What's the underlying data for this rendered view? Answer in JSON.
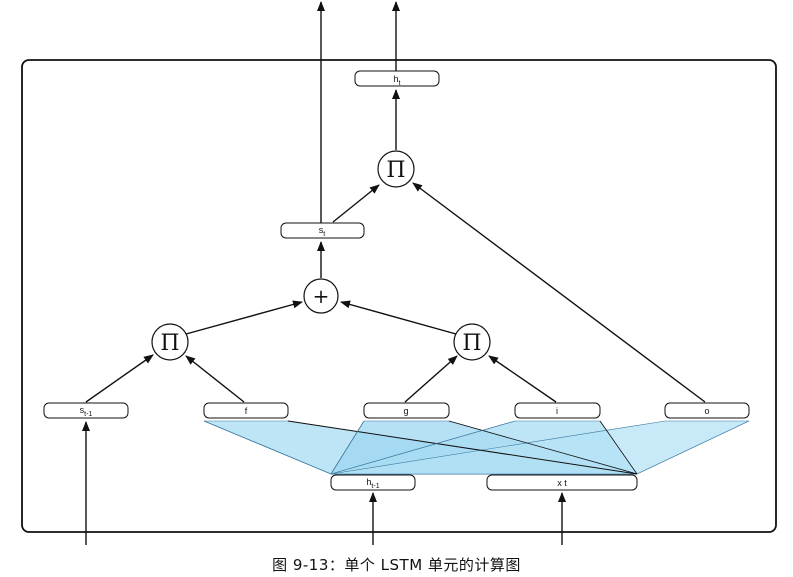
{
  "nodes": {
    "h_t": {
      "base": "h",
      "sub": "t"
    },
    "s_t": {
      "base": "s",
      "sub": "t"
    },
    "s_t_1": {
      "base": "s",
      "sub": "t-1"
    },
    "f": {
      "base": "f",
      "sub": ""
    },
    "g": {
      "base": "g",
      "sub": ""
    },
    "i": {
      "base": "i",
      "sub": ""
    },
    "o": {
      "base": "o",
      "sub": ""
    },
    "h_t_1": {
      "base": "h",
      "sub": "t-1"
    },
    "x_t": {
      "base": "x t",
      "sub": ""
    }
  },
  "operators": {
    "product_top": "Π",
    "sum": "+",
    "product_left": "Π",
    "product_right": "Π"
  },
  "caption": "图 9-13：单个 LSTM 单元的计算图",
  "colors": {
    "fan_fill": "#a8dcf2",
    "fan_fill_dark": "#86c6e8",
    "stroke": "#111111"
  }
}
